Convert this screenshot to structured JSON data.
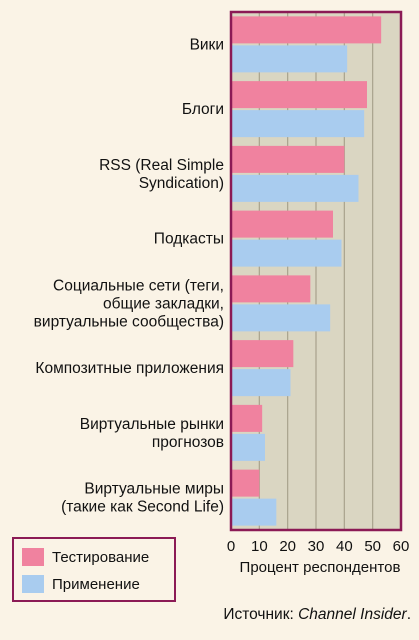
{
  "chart_data": {
    "type": "bar",
    "orientation": "horizontal",
    "categories": [
      [
        "Вики"
      ],
      [
        "Блоги"
      ],
      [
        "RSS (Real Simple",
        "Syndication)"
      ],
      [
        "Подкасты"
      ],
      [
        "Социальные сети (теги,",
        "общие закладки,",
        "виртуальные сообщества)"
      ],
      [
        "Композитные приложения"
      ],
      [
        "Виртуальные рынки",
        "прогнозов"
      ],
      [
        "Виртуальные миры",
        "(такие как Second Life)"
      ]
    ],
    "series": [
      {
        "name": "Тестирование",
        "color": "#f0829f",
        "values": [
          53,
          48,
          40,
          36,
          28,
          22,
          11,
          10
        ]
      },
      {
        "name": "Применение",
        "color": "#a9ccef",
        "values": [
          41,
          47,
          45,
          39,
          35,
          21,
          12,
          16
        ]
      }
    ],
    "xlabel": "Процент респондентов",
    "xlim": [
      0,
      60
    ],
    "xticks": [
      0,
      10,
      20,
      30,
      40,
      50,
      60
    ],
    "grid": true,
    "legend_position": "bottom-left",
    "plot_background": "#dad6c2",
    "frame_color": "#8b1a55"
  },
  "legend": {
    "testing": "Тестирование",
    "applied": "Применение"
  },
  "source": {
    "prefix": "Источник: ",
    "name": "Channel Insider",
    "suffix": "."
  }
}
